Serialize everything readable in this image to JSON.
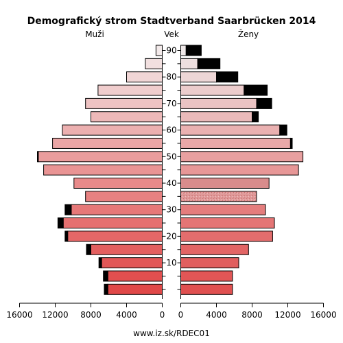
{
  "chart_data": {
    "type": "bar",
    "title": "Demografický strom Stadtverband Saarbrücken 2014",
    "left_label": "Muži",
    "center_label": "Vek",
    "right_label": "Ženy",
    "footer": "www.iz.sk/RDEC01",
    "x_ticks": [
      "16000",
      "12000",
      "8000",
      "4000",
      "0",
      "0",
      "4000",
      "8000",
      "12000",
      "16000"
    ],
    "x_max": 16000,
    "age_ticks": [
      "10",
      "20",
      "30",
      "40",
      "50",
      "60",
      "70",
      "80",
      "90"
    ],
    "age_groups": [
      "0-4",
      "5-9",
      "10-14",
      "15-19",
      "20-24",
      "25-29",
      "30-34",
      "35-39",
      "40-44",
      "45-49",
      "50-54",
      "55-59",
      "60-64",
      "65-69",
      "70-74",
      "75-79",
      "80-84",
      "85-89",
      "90+"
    ],
    "series": [
      {
        "name": "Muži",
        "values": [
          6100,
          6100,
          6800,
          8000,
          10600,
          11100,
          10200,
          8600,
          9900,
          13300,
          13900,
          12300,
          11200,
          8000,
          8600,
          7200,
          4000,
          1900,
          700
        ]
      },
      {
        "name": "Muži excess",
        "values": [
          400,
          500,
          300,
          500,
          300,
          600,
          700,
          0,
          0,
          0,
          100,
          0,
          0,
          0,
          0,
          0,
          0,
          0,
          0
        ]
      },
      {
        "name": "Ženy",
        "values": [
          5800,
          5800,
          6500,
          7600,
          10300,
          10500,
          9500,
          8500,
          9900,
          13200,
          13700,
          12300,
          11100,
          8000,
          8500,
          7100,
          4000,
          1900,
          600
        ]
      },
      {
        "name": "Ženy excess",
        "values": [
          0,
          0,
          0,
          0,
          0,
          0,
          0,
          0,
          0,
          0,
          0,
          200,
          800,
          700,
          1700,
          2600,
          2400,
          2500,
          1700
        ]
      }
    ],
    "colors": {
      "excess": "#000000",
      "male_young": "#e04848",
      "male_old": "#f3eaea",
      "female_young": "#e05050",
      "female_old": "#efe8e8",
      "female_4044": "#d88c8c",
      "hatched_band": "#df9595"
    }
  }
}
